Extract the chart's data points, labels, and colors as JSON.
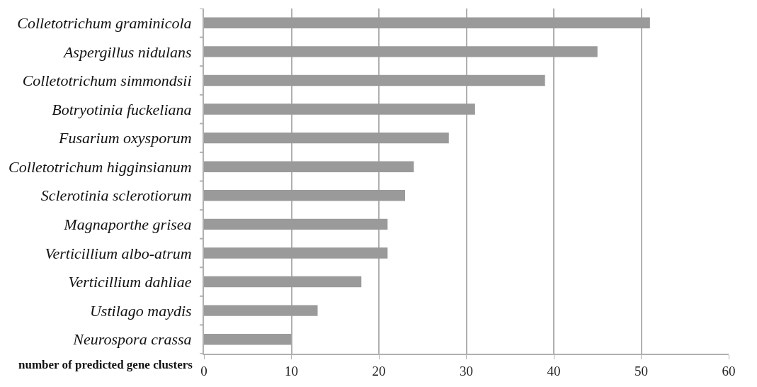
{
  "chart_data": {
    "type": "bar",
    "orientation": "horizontal",
    "xlabel": "number of predicted gene clusters",
    "categories": [
      "Colletotrichum graminicola",
      "Aspergillus nidulans",
      "Colletotrichum simmondsii",
      "Botryotinia fuckeliana",
      "Fusarium oxysporum",
      "Colletotrichum higginsianum",
      "Sclerotinia sclerotiorum",
      "Magnaporthe grisea",
      "Verticillium albo-atrum",
      "Verticillium dahliae",
      "Ustilago maydis",
      "Neurospora crassa"
    ],
    "values": [
      51,
      45,
      39,
      31,
      28,
      24,
      23,
      21,
      21,
      18,
      13,
      10
    ],
    "color": "#9a9a9a",
    "xlim": [
      0,
      60
    ],
    "xticks": [
      0,
      10,
      20,
      30,
      40,
      50,
      60
    ],
    "grid": "x"
  }
}
